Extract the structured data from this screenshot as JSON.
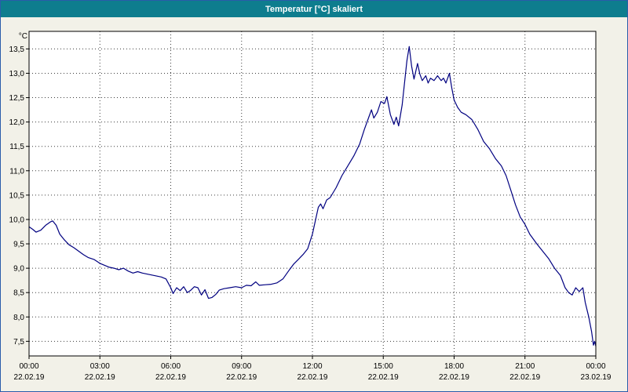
{
  "window": {
    "title": "Temperatur [°C] skaliert"
  },
  "colors": {
    "titlebar_bg": "#0e7d8e",
    "titlebar_text": "#ffffff",
    "window_border": "#2a5caa",
    "chart_bg": "#f2f1e8",
    "plot_bg": "#ffffff",
    "plot_border": "#000000",
    "axis_text": "#000000",
    "line_color": "#000080"
  },
  "chart_data": {
    "type": "line",
    "title": "Temperatur [°C] skaliert",
    "ylabel": "°C",
    "ylim": [
      7.2,
      13.86
    ],
    "xlim_hours": [
      0,
      24
    ],
    "grid": {
      "style": "dotted",
      "color": "#3c3c3c"
    },
    "legend": "none",
    "yticks": [
      {
        "value": 13.5,
        "label": "13,5"
      },
      {
        "value": 13.0,
        "label": "13,0"
      },
      {
        "value": 12.5,
        "label": "12,5"
      },
      {
        "value": 12.0,
        "label": "12,0"
      },
      {
        "value": 11.5,
        "label": "11,5"
      },
      {
        "value": 11.0,
        "label": "11,0"
      },
      {
        "value": 10.5,
        "label": "10,5"
      },
      {
        "value": 10.0,
        "label": "10,0"
      },
      {
        "value": 9.5,
        "label": "9,5"
      },
      {
        "value": 9.0,
        "label": "9,0"
      },
      {
        "value": 8.5,
        "label": "8,5"
      },
      {
        "value": 8.0,
        "label": "8,0"
      },
      {
        "value": 7.5,
        "label": "7,5"
      }
    ],
    "xticks": [
      {
        "hour": 0,
        "time": "00:00",
        "date": "22.02.19"
      },
      {
        "hour": 3,
        "time": "03:00",
        "date": "22.02.19"
      },
      {
        "hour": 6,
        "time": "06:00",
        "date": "22.02.19"
      },
      {
        "hour": 9,
        "time": "09:00",
        "date": "22.02.19"
      },
      {
        "hour": 12,
        "time": "12:00",
        "date": "22.02.19"
      },
      {
        "hour": 15,
        "time": "15:00",
        "date": "22.02.19"
      },
      {
        "hour": 18,
        "time": "18:00",
        "date": "22.02.19"
      },
      {
        "hour": 21,
        "time": "21:00",
        "date": "22.02.19"
      },
      {
        "hour": 24,
        "time": "00:00",
        "date": "23.02.19"
      }
    ],
    "series": [
      {
        "name": "Temperatur",
        "color": "#000080",
        "points": [
          [
            0,
            9.85
          ],
          [
            0.15,
            9.8
          ],
          [
            0.3,
            9.74
          ],
          [
            0.5,
            9.78
          ],
          [
            0.7,
            9.88
          ],
          [
            0.9,
            9.95
          ],
          [
            1,
            9.97
          ],
          [
            1.15,
            9.88
          ],
          [
            1.3,
            9.7
          ],
          [
            1.5,
            9.58
          ],
          [
            1.7,
            9.48
          ],
          [
            1.9,
            9.42
          ],
          [
            2.1,
            9.35
          ],
          [
            2.3,
            9.28
          ],
          [
            2.5,
            9.22
          ],
          [
            2.75,
            9.18
          ],
          [
            3,
            9.1
          ],
          [
            3.2,
            9.06
          ],
          [
            3.4,
            9.02
          ],
          [
            3.6,
            9
          ],
          [
            3.8,
            8.97
          ],
          [
            4,
            9
          ],
          [
            4.2,
            8.94
          ],
          [
            4.4,
            8.9
          ],
          [
            4.6,
            8.93
          ],
          [
            4.8,
            8.9
          ],
          [
            5,
            8.88
          ],
          [
            5.2,
            8.86
          ],
          [
            5.4,
            8.84
          ],
          [
            5.6,
            8.82
          ],
          [
            5.8,
            8.78
          ],
          [
            6,
            8.6
          ],
          [
            6.1,
            8.48
          ],
          [
            6.25,
            8.6
          ],
          [
            6.4,
            8.54
          ],
          [
            6.55,
            8.62
          ],
          [
            6.7,
            8.5
          ],
          [
            6.85,
            8.55
          ],
          [
            7,
            8.62
          ],
          [
            7.15,
            8.6
          ],
          [
            7.3,
            8.45
          ],
          [
            7.45,
            8.56
          ],
          [
            7.6,
            8.38
          ],
          [
            7.75,
            8.4
          ],
          [
            7.9,
            8.46
          ],
          [
            8.05,
            8.55
          ],
          [
            8.25,
            8.58
          ],
          [
            8.5,
            8.6
          ],
          [
            8.75,
            8.62
          ],
          [
            9,
            8.6
          ],
          [
            9.2,
            8.65
          ],
          [
            9.4,
            8.64
          ],
          [
            9.6,
            8.72
          ],
          [
            9.75,
            8.65
          ],
          [
            10,
            8.66
          ],
          [
            10.25,
            8.67
          ],
          [
            10.5,
            8.7
          ],
          [
            10.75,
            8.78
          ],
          [
            11,
            8.95
          ],
          [
            11.2,
            9.08
          ],
          [
            11.4,
            9.18
          ],
          [
            11.6,
            9.28
          ],
          [
            11.8,
            9.4
          ],
          [
            12,
            9.7
          ],
          [
            12.1,
            9.92
          ],
          [
            12.25,
            10.25
          ],
          [
            12.35,
            10.32
          ],
          [
            12.45,
            10.22
          ],
          [
            12.6,
            10.4
          ],
          [
            12.75,
            10.45
          ],
          [
            13,
            10.65
          ],
          [
            13.25,
            10.9
          ],
          [
            13.5,
            11.1
          ],
          [
            13.75,
            11.3
          ],
          [
            14,
            11.55
          ],
          [
            14.2,
            11.85
          ],
          [
            14.35,
            12.05
          ],
          [
            14.5,
            12.25
          ],
          [
            14.6,
            12.08
          ],
          [
            14.75,
            12.2
          ],
          [
            14.9,
            12.42
          ],
          [
            15.05,
            12.38
          ],
          [
            15.15,
            12.52
          ],
          [
            15.3,
            12.15
          ],
          [
            15.45,
            11.95
          ],
          [
            15.55,
            12.1
          ],
          [
            15.65,
            11.92
          ],
          [
            15.8,
            12.35
          ],
          [
            15.9,
            12.8
          ],
          [
            16,
            13.25
          ],
          [
            16.1,
            13.55
          ],
          [
            16.2,
            13.15
          ],
          [
            16.3,
            12.88
          ],
          [
            16.45,
            13.2
          ],
          [
            16.55,
            12.98
          ],
          [
            16.65,
            12.85
          ],
          [
            16.8,
            12.95
          ],
          [
            16.9,
            12.8
          ],
          [
            17,
            12.9
          ],
          [
            17.15,
            12.85
          ],
          [
            17.3,
            12.95
          ],
          [
            17.45,
            12.85
          ],
          [
            17.55,
            12.9
          ],
          [
            17.65,
            12.8
          ],
          [
            17.8,
            13
          ],
          [
            17.9,
            12.7
          ],
          [
            18,
            12.45
          ],
          [
            18.15,
            12.3
          ],
          [
            18.3,
            12.2
          ],
          [
            18.5,
            12.15
          ],
          [
            18.75,
            12.05
          ],
          [
            19,
            11.85
          ],
          [
            19.25,
            11.6
          ],
          [
            19.5,
            11.45
          ],
          [
            19.75,
            11.25
          ],
          [
            20,
            11.1
          ],
          [
            20.2,
            10.9
          ],
          [
            20.4,
            10.6
          ],
          [
            20.6,
            10.3
          ],
          [
            20.8,
            10.05
          ],
          [
            21,
            9.9
          ],
          [
            21.2,
            9.7
          ],
          [
            21.5,
            9.5
          ],
          [
            21.75,
            9.35
          ],
          [
            22,
            9.2
          ],
          [
            22.25,
            9
          ],
          [
            22.5,
            8.85
          ],
          [
            22.7,
            8.6
          ],
          [
            22.85,
            8.5
          ],
          [
            23,
            8.45
          ],
          [
            23.15,
            8.6
          ],
          [
            23.3,
            8.52
          ],
          [
            23.45,
            8.6
          ],
          [
            23.55,
            8.3
          ],
          [
            23.7,
            8
          ],
          [
            23.82,
            7.7
          ],
          [
            23.9,
            7.42
          ],
          [
            23.95,
            7.5
          ],
          [
            24,
            7.4
          ]
        ]
      }
    ]
  }
}
